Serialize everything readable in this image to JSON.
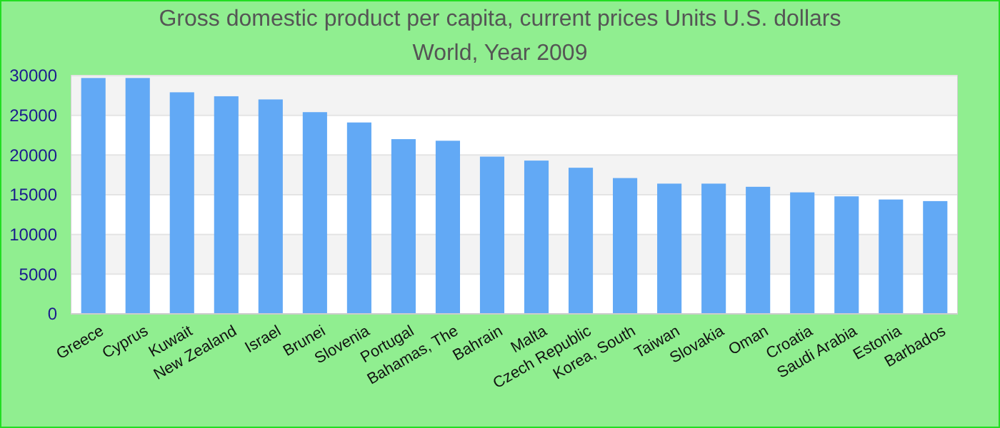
{
  "chart_data": {
    "type": "bar",
    "title": "Gross domestic product per capita, current prices Units U.S. dollars",
    "subtitle": "World, Year 2009",
    "categories": [
      "Greece",
      "Cyprus",
      "Kuwait",
      "New Zealand",
      "Israel",
      "Brunei",
      "Slovenia",
      "Portugal",
      "Bahamas, The",
      "Bahrain",
      "Malta",
      "Czech Republic",
      "Korea, South",
      "Taiwan",
      "Slovakia",
      "Oman",
      "Croatia",
      "Saudi Arabia",
      "Estonia",
      "Barbados"
    ],
    "values": [
      29700,
      29700,
      27900,
      27400,
      27000,
      25400,
      24100,
      22000,
      21800,
      19800,
      19300,
      18400,
      17100,
      16400,
      16400,
      16000,
      15300,
      14800,
      14400,
      14200
    ],
    "color": "#62a9f5",
    "ylim": [
      0,
      30000
    ],
    "yticks": [
      0,
      5000,
      10000,
      15000,
      20000,
      25000,
      30000
    ],
    "grid": "y"
  }
}
